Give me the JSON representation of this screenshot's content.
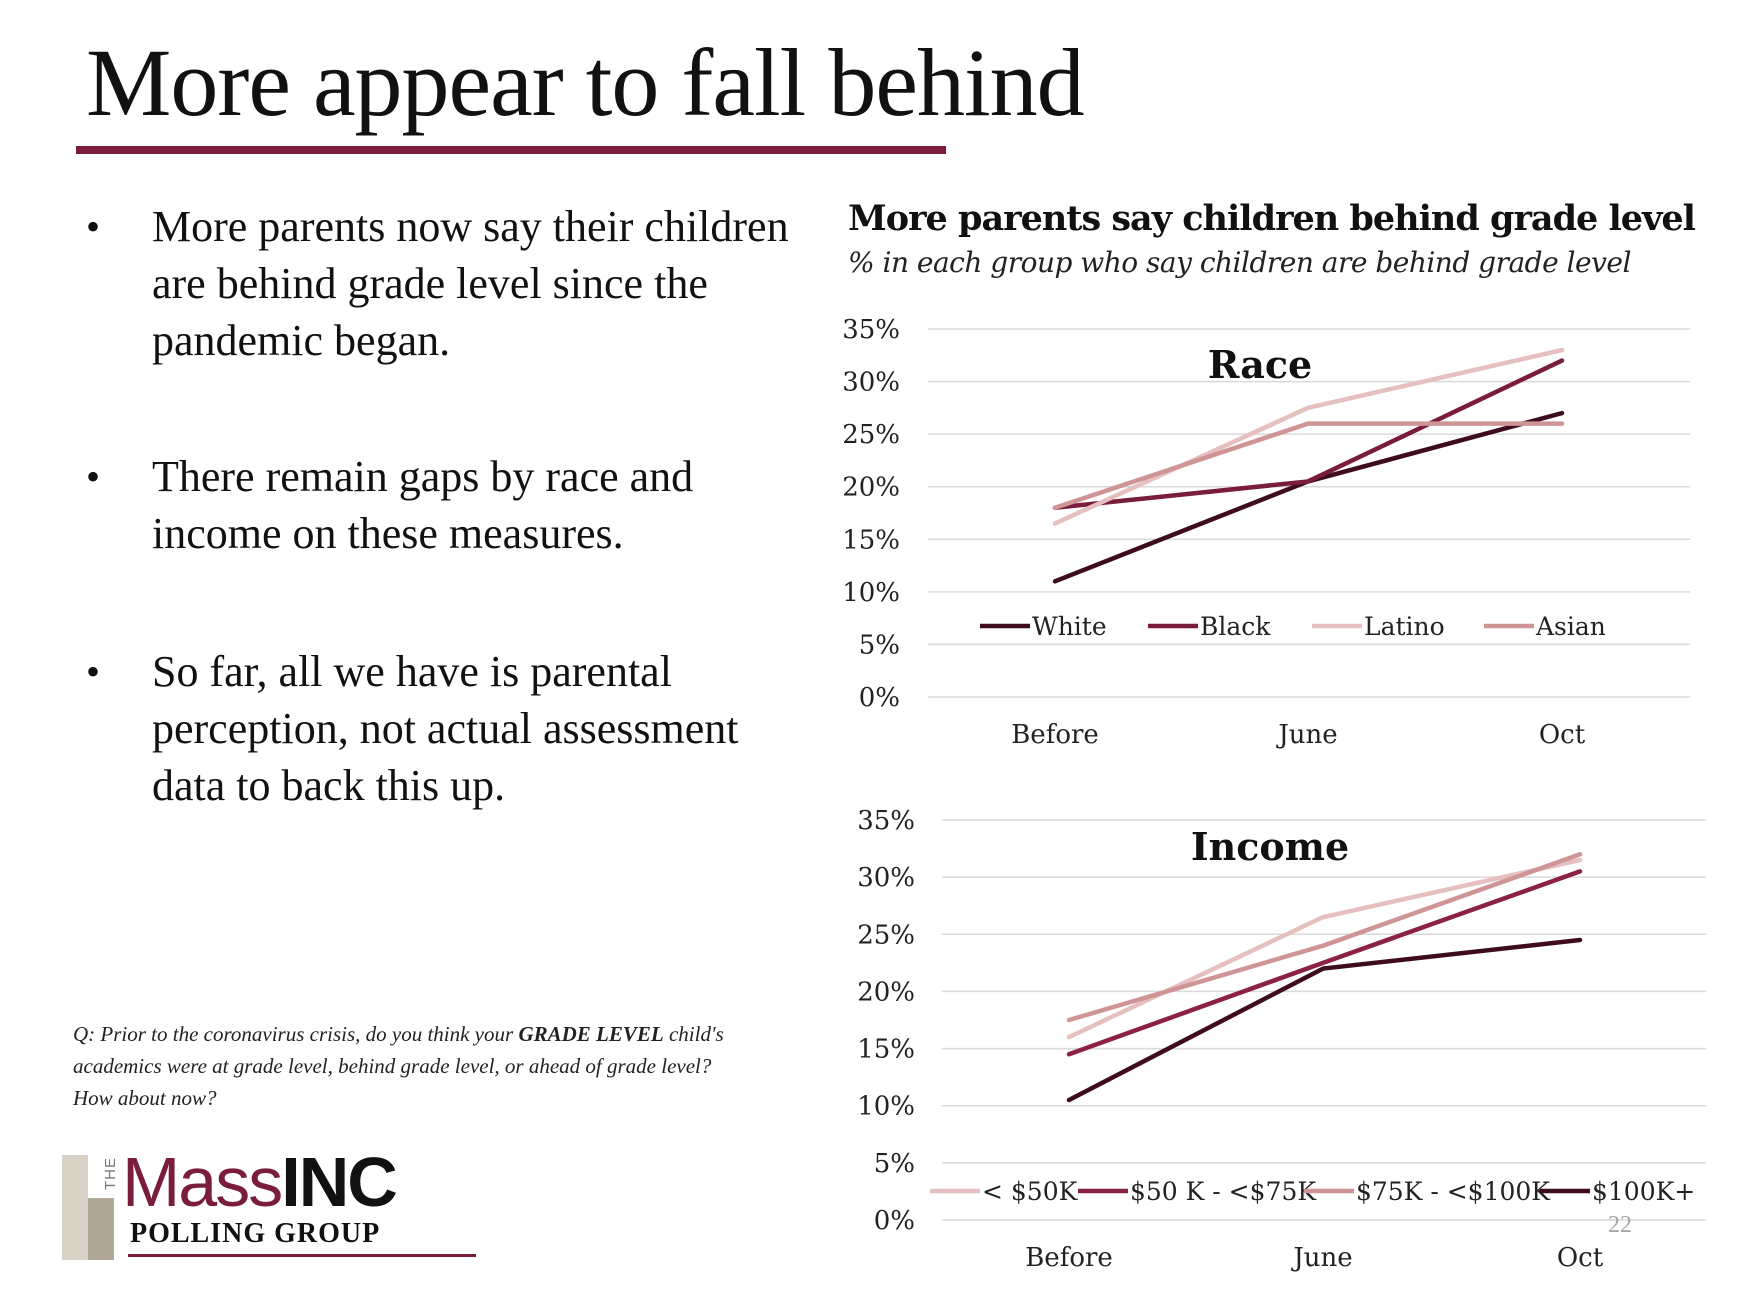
{
  "slide": {
    "title": "More appear to fall behind",
    "accent_color": "#7a1d3a",
    "page_number": "22"
  },
  "bullets": [
    {
      "marker": "•",
      "text": "More parents now say their children are behind grade level since the pandemic began."
    },
    {
      "marker": "•",
      "text": "There remain gaps by race and income on these measures."
    },
    {
      "marker": "•",
      "text": "So far, all we have is parental perception, not actual assessment data to back this up."
    }
  ],
  "question": {
    "prefix": "Q: Prior to the coronavirus crisis, do you think your ",
    "bold": "GRADE LEVEL",
    "suffix": " child's academics were at grade level, behind grade level, or ahead of grade level? How about now?"
  },
  "logo": {
    "the": "THE",
    "mass": "Mass",
    "inc": "INC",
    "sub": "POLLING GROUP"
  },
  "chart_header": {
    "title": "More parents say children behind grade level",
    "subtitle": "% in each group who say children are behind grade level"
  },
  "chart_data": [
    {
      "type": "line",
      "title": "Race",
      "categories": [
        "Before",
        "June",
        "Oct"
      ],
      "ylim": [
        0,
        35
      ],
      "yticks": [
        "35%",
        "30%",
        "25%",
        "20%",
        "15%",
        "10%",
        "5%",
        "0%"
      ],
      "grid": true,
      "legend_position": "bottom",
      "series": [
        {
          "name": "White",
          "color": "#3d0c1f",
          "values": [
            11,
            20.5,
            27
          ]
        },
        {
          "name": "Black",
          "color": "#7a1d3a",
          "values": [
            18,
            20.5,
            32
          ]
        },
        {
          "name": "Latino",
          "color": "#e6bfbf",
          "values": [
            16.5,
            27.5,
            33
          ]
        },
        {
          "name": "Asian",
          "color": "#cf9595",
          "values": [
            18,
            26,
            26
          ]
        }
      ]
    },
    {
      "type": "line",
      "title": "Income",
      "categories": [
        "Before",
        "June",
        "Oct"
      ],
      "ylim": [
        0,
        35
      ],
      "yticks": [
        "35%",
        "30%",
        "25%",
        "20%",
        "15%",
        "10%",
        "5%",
        "0%"
      ],
      "grid": true,
      "legend_position": "bottom",
      "series": [
        {
          "name": "< $50K",
          "color": "#e6bfbf",
          "values": [
            16,
            26.5,
            31.5
          ]
        },
        {
          "name": "$50 K - <$75K",
          "color": "#8c2243",
          "values": [
            14.5,
            22.5,
            30.5
          ]
        },
        {
          "name": "$75K - <$100K",
          "color": "#cf9595",
          "values": [
            17.5,
            24,
            32
          ]
        },
        {
          "name": "$100K+",
          "color": "#3d0c1f",
          "values": [
            10.5,
            22,
            24.5
          ]
        }
      ]
    }
  ]
}
